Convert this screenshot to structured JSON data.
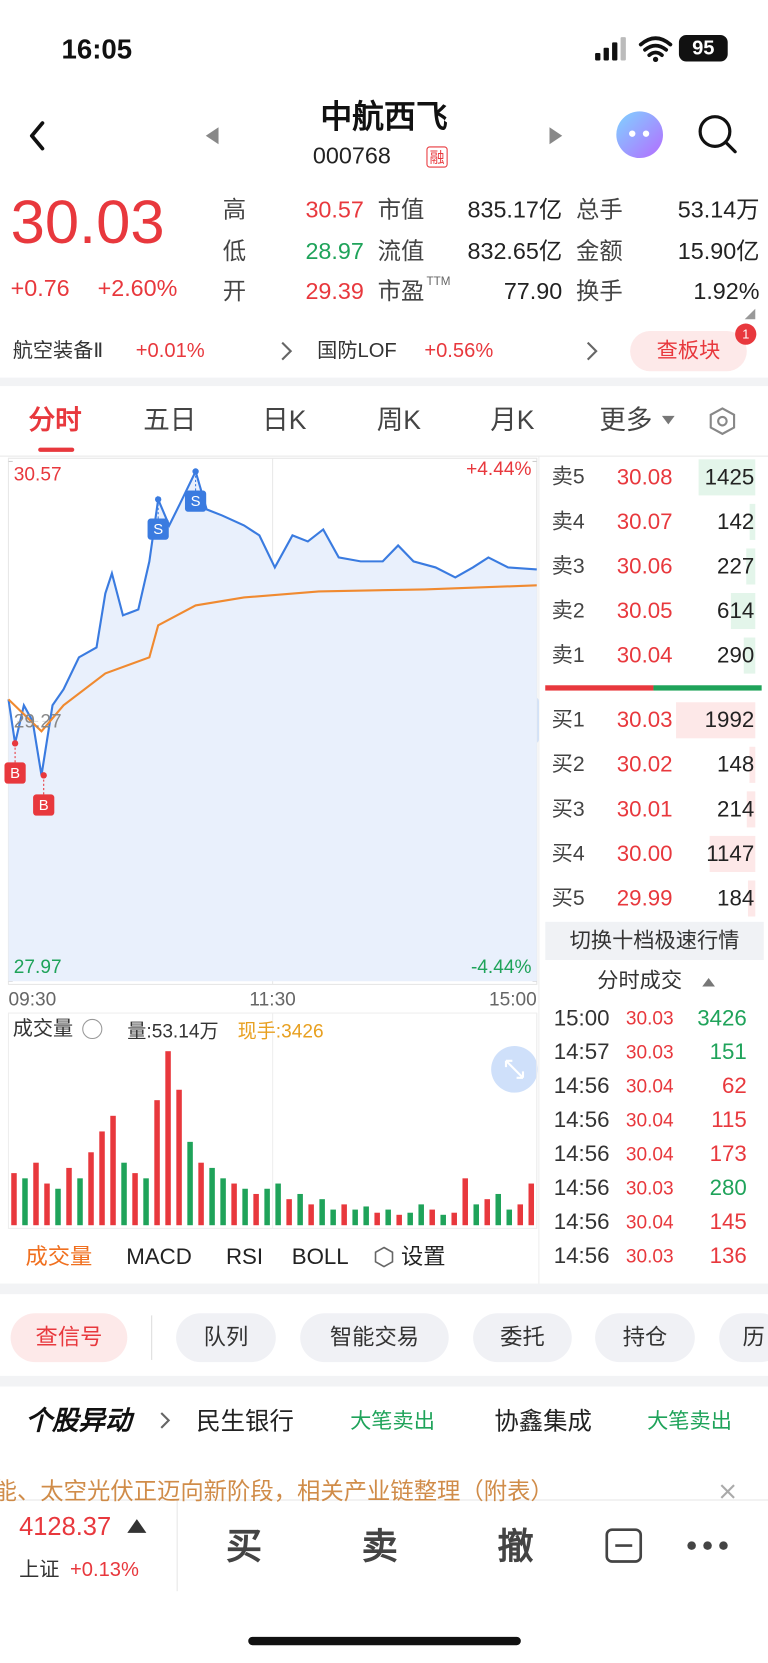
{
  "status_bar": {
    "time": "16:05",
    "battery": "95"
  },
  "header": {
    "name": "中航西飞",
    "code": "000768",
    "badge": "融"
  },
  "quote": {
    "price": "30.03",
    "change": "+0.76",
    "change_pct": "+2.60%",
    "stats": [
      [
        {
          "label": "高",
          "value": "30.57"
        },
        {
          "label": "市值",
          "value": "835.17亿"
        },
        {
          "label": "总手",
          "value": "53.14万"
        }
      ],
      [
        {
          "label": "低",
          "value": "28.97"
        },
        {
          "label": "流值",
          "value": "832.65亿"
        },
        {
          "label": "金额",
          "value": "15.90亿"
        }
      ],
      [
        {
          "label": "开",
          "value": "29.39"
        },
        {
          "label": "市盈",
          "sup": "TTM",
          "value": "77.90"
        },
        {
          "label": "换手",
          "value": "1.92%"
        }
      ]
    ]
  },
  "sectors": {
    "items": [
      {
        "name": "航空装备Ⅱ",
        "change": "+0.01%"
      },
      {
        "name": "国防LOF",
        "change": "+0.56%"
      }
    ],
    "button": "查板块",
    "badge": "1"
  },
  "tabs": [
    "分时",
    "五日",
    "日K",
    "周K",
    "月K",
    "更多"
  ],
  "chart_data": [
    {
      "type": "line",
      "xlim": [
        0,
        240
      ],
      "ylim": [
        27.97,
        30.57
      ],
      "yticks": [
        30.57,
        29.27,
        27.97
      ],
      "y2lim": [
        -4.44,
        4.44
      ],
      "y2ticks": [
        {
          "value": 4.44,
          "label": "+4.44%"
        },
        {
          "value": -4.44,
          "label": "-4.44%"
        }
      ],
      "xticks": [
        {
          "value": 0,
          "label": "09:30"
        },
        {
          "value": 120,
          "label": "11:30"
        },
        {
          "value": 240,
          "label": "15:00"
        }
      ],
      "series": [
        {
          "color": "#3a7be0",
          "x": [
            0,
            3,
            7,
            11,
            15,
            20,
            25,
            32,
            40,
            44,
            47,
            52,
            59,
            64,
            68,
            73,
            78,
            85,
            90,
            97,
            107,
            114,
            121,
            129,
            136,
            143,
            150,
            160,
            170,
            177,
            184,
            194,
            203,
            211,
            218,
            227,
            240
          ],
          "values": [
            29.38,
            29.16,
            29.35,
            29.27,
            29.0,
            29.35,
            29.43,
            29.59,
            29.64,
            29.91,
            30.01,
            29.8,
            29.83,
            30.07,
            30.38,
            30.25,
            30.36,
            30.52,
            30.33,
            30.3,
            30.25,
            30.2,
            30.04,
            30.2,
            30.17,
            30.23,
            30.09,
            30.07,
            30.07,
            30.15,
            30.07,
            30.04,
            29.99,
            30.04,
            30.09,
            30.04,
            30.03
          ]
        },
        {
          "color": "#f08a30",
          "x": [
            0,
            15,
            25,
            44,
            64,
            68,
            85,
            107,
            141,
            189,
            240
          ],
          "values": [
            29.38,
            29.22,
            29.35,
            29.51,
            29.59,
            29.75,
            29.85,
            29.89,
            29.92,
            29.93,
            29.95
          ]
        }
      ],
      "markers": [
        {
          "label": "B",
          "x": 3,
          "y": 29.16
        },
        {
          "label": "B",
          "x": 16,
          "y": 29.0
        },
        {
          "label": "S",
          "x": 68,
          "y": 30.38
        },
        {
          "label": "S",
          "x": 85,
          "y": 30.52
        }
      ]
    },
    {
      "type": "bar",
      "title": "成交量",
      "summary": "量:53.14万",
      "current": "现手:3426",
      "ylim": [
        0,
        170
      ],
      "values": [
        50,
        45,
        60,
        40,
        35,
        55,
        45,
        70,
        90,
        105,
        60,
        50,
        45,
        120,
        167,
        130,
        80,
        60,
        55,
        45,
        40,
        35,
        30,
        35,
        40,
        25,
        30,
        20,
        25,
        15,
        20,
        15,
        18,
        12,
        15,
        10,
        12,
        20,
        15,
        10,
        12,
        45,
        20,
        25,
        30,
        15,
        20,
        40
      ],
      "colors": [
        "#e8383d",
        "#1fa35a",
        "#e8383d",
        "#e8383d",
        "#1fa35a",
        "#e8383d",
        "#1fa35a",
        "#e8383d",
        "#e8383d",
        "#e8383d",
        "#1fa35a",
        "#e8383d",
        "#1fa35a",
        "#e8383d",
        "#e8383d",
        "#e8383d",
        "#1fa35a",
        "#e8383d",
        "#1fa35a",
        "#1fa35a",
        "#e8383d",
        "#1fa35a",
        "#e8383d",
        "#1fa35a",
        "#1fa35a",
        "#e8383d",
        "#1fa35a",
        "#e8383d",
        "#1fa35a",
        "#1fa35a",
        "#e8383d",
        "#1fa35a",
        "#1fa35a",
        "#e8383d",
        "#1fa35a",
        "#e8383d",
        "#1fa35a",
        "#1fa35a",
        "#e8383d",
        "#1fa35a",
        "#e8383d",
        "#e8383d",
        "#1fa35a",
        "#e8383d",
        "#1fa35a",
        "#1fa35a",
        "#e8383d",
        "#e8383d"
      ],
      "indicators": [
        "成交量",
        "MACD",
        "RSI",
        "BOLL"
      ],
      "settings": "设置"
    }
  ],
  "order_book": {
    "asks": [
      {
        "label": "卖5",
        "price": "30.08",
        "volume": "1425"
      },
      {
        "label": "卖4",
        "price": "30.07",
        "volume": "142"
      },
      {
        "label": "卖3",
        "price": "30.06",
        "volume": "227"
      },
      {
        "label": "卖2",
        "price": "30.05",
        "volume": "614"
      },
      {
        "label": "卖1",
        "price": "30.04",
        "volume": "290"
      }
    ],
    "bids": [
      {
        "label": "买1",
        "price": "30.03",
        "volume": "1992"
      },
      {
        "label": "买2",
        "price": "30.02",
        "volume": "148"
      },
      {
        "label": "买3",
        "price": "30.01",
        "volume": "214"
      },
      {
        "label": "买4",
        "price": "30.00",
        "volume": "1147"
      },
      {
        "label": "买5",
        "price": "29.99",
        "volume": "184"
      }
    ],
    "switch": "切换十档极速行情"
  },
  "trades": {
    "title": "分时成交",
    "rows": [
      {
        "time": "15:00",
        "price": "30.03",
        "volume": "3426",
        "color": "#1fa35a"
      },
      {
        "time": "14:57",
        "price": "30.03",
        "volume": "151",
        "color": "#1fa35a"
      },
      {
        "time": "14:56",
        "price": "30.04",
        "volume": "62",
        "color": "#e8383d"
      },
      {
        "time": "14:56",
        "price": "30.04",
        "volume": "115",
        "color": "#e8383d"
      },
      {
        "time": "14:56",
        "price": "30.04",
        "volume": "173",
        "color": "#e8383d"
      },
      {
        "time": "14:56",
        "price": "30.03",
        "volume": "280",
        "color": "#1fa35a"
      },
      {
        "time": "14:56",
        "price": "30.04",
        "volume": "145",
        "color": "#e8383d"
      },
      {
        "time": "14:56",
        "price": "30.03",
        "volume": "136",
        "color": "#e8383d"
      }
    ]
  },
  "actions": [
    "查信号",
    "队列",
    "智能交易",
    "委托",
    "持仓",
    "历"
  ],
  "alerts": {
    "title": "个股异动",
    "items": [
      {
        "name": "民生银行",
        "event": "大笔卖出"
      },
      {
        "name": "协鑫集成",
        "event": "大笔卖出"
      }
    ]
  },
  "news": "能、太空光伏正迈向新阶段，相关产业链整理（附表）",
  "footer": {
    "index_value": "4128.37",
    "index_name": "上证",
    "index_change": "+0.13%",
    "buttons": [
      "买",
      "卖",
      "撤"
    ]
  }
}
